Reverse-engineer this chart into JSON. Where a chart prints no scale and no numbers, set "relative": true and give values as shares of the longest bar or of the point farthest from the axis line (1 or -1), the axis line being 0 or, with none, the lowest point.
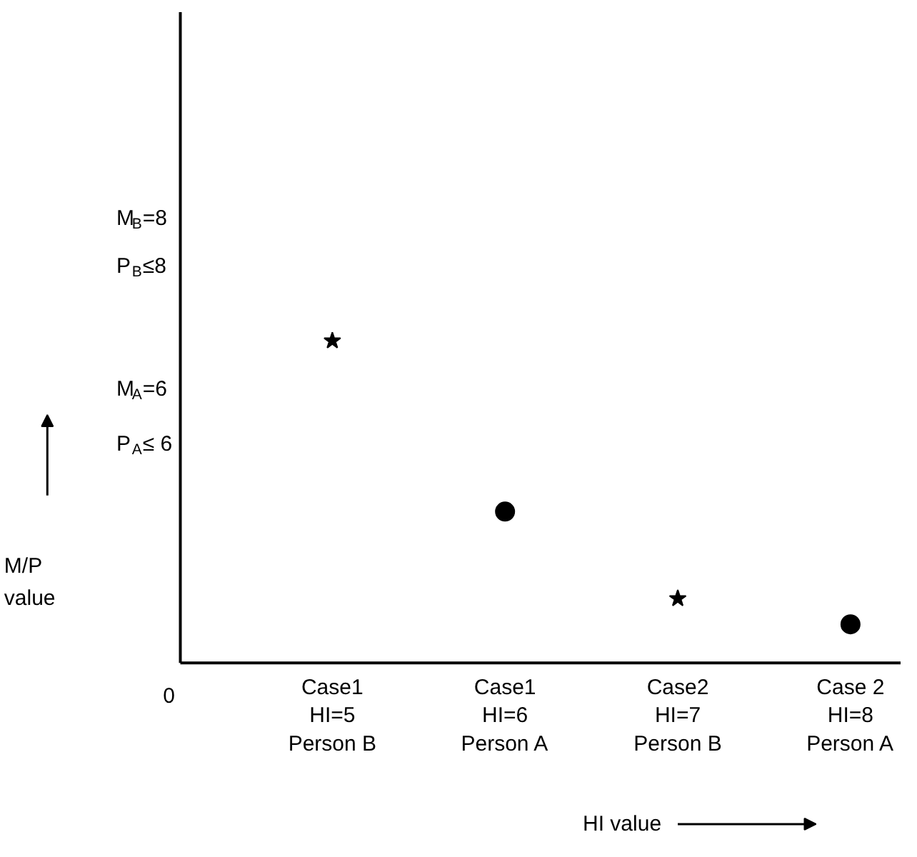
{
  "chart_data": {
    "type": "scatter",
    "relative": true,
    "categories": [
      "Case1\nHI=5\nPerson B",
      "Case1\nHI=6\nPerson A",
      "Case2\nHI=7\nPerson B",
      "Case 2\nHI=8\nPerson A"
    ],
    "series": [
      {
        "x": [
          "Case1\nHI=5\nPerson B",
          "Case2\nHI=7\nPerson B"
        ],
        "values": [
          1,
          0.2
        ],
        "marker": "star",
        "color": "#000000"
      },
      {
        "x": [
          "Case1\nHI=6\nPerson A",
          "Case 2\nHI=8\nPerson A"
        ],
        "values": [
          0.47,
          0.12
        ],
        "marker": "circle",
        "color": "#000000"
      }
    ],
    "xlabel": "HI value",
    "annotations": [
      "M$_{B}$=8",
      "P$_{B}$≤8",
      "M$_{A}$=6",
      "P$_{A}$≤ 6",
      "0",
      "M/P\nvalue"
    ],
    "grid": false
  }
}
